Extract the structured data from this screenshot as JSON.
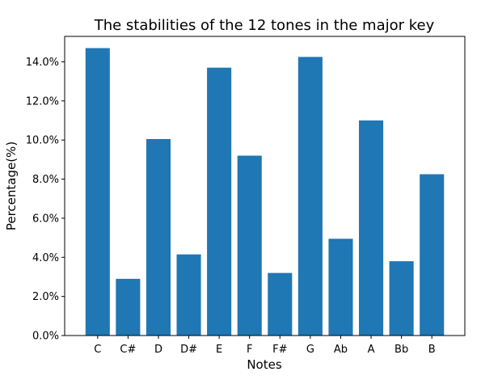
{
  "chart_data": {
    "type": "bar",
    "title": "The stabilities of the 12 tones in the major key",
    "xlabel": "Notes",
    "ylabel": "Percentage(%)",
    "categories": [
      "C",
      "C#",
      "D",
      "D#",
      "E",
      "F",
      "F#",
      "G",
      "Ab",
      "A",
      "Bb",
      "B"
    ],
    "values": [
      14.7,
      2.9,
      10.05,
      4.15,
      13.7,
      9.2,
      3.2,
      14.25,
      4.95,
      11.0,
      3.8,
      8.25
    ],
    "ylim": [
      0,
      15.3
    ],
    "yticks": [
      0,
      2,
      4,
      6,
      8,
      10,
      12,
      14
    ],
    "ytick_labels": [
      "0.0%",
      "2.0%",
      "4.0%",
      "6.0%",
      "8.0%",
      "10.0%",
      "12.0%",
      "14.0%"
    ],
    "bar_color": "#1f77b4",
    "grid": false,
    "legend": "none"
  }
}
